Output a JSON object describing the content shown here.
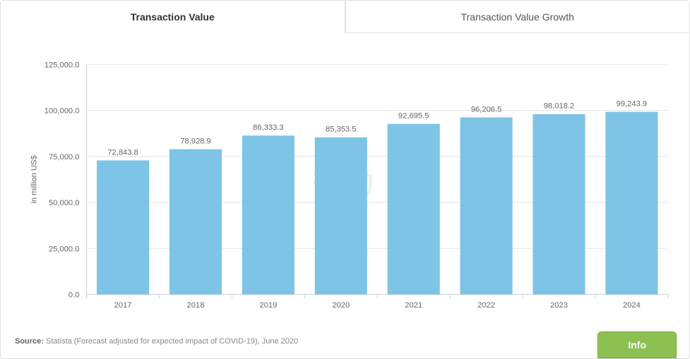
{
  "tabs": {
    "active": "Transaction Value",
    "inactive": "Transaction Value Growth"
  },
  "chart": {
    "type": "bar",
    "ylabel": "in million US$",
    "categories": [
      "2017",
      "2018",
      "2019",
      "2020",
      "2021",
      "2022",
      "2023",
      "2024"
    ],
    "values": [
      72843.8,
      78928.9,
      86333.3,
      85353.5,
      92695.5,
      96206.5,
      98018.2,
      99243.9
    ],
    "value_labels": [
      "72,843.8",
      "78,928.9",
      "86,333.3",
      "85,353.5",
      "92,695.5",
      "96,206.5",
      "98,018.2",
      "99,243.9"
    ],
    "ylim": [
      0,
      125000
    ],
    "yticks": [
      0,
      25000,
      50000,
      75000,
      100000,
      125000
    ],
    "ytick_labels": [
      "0.0",
      "25,000.0",
      "50,000.0",
      "75,000.0",
      "100,000.0",
      "125,000.0"
    ],
    "bar_color": "#7ec4e6",
    "axis_color": "#cfd4d8",
    "grid_color": "#ffffff",
    "text_color": "#666666",
    "label_fontsize": 11,
    "ylabel_fontsize": 11,
    "value_label_fontsize": 11,
    "background": "#ffffff"
  },
  "watermark": "律动",
  "source": {
    "label": "Source:",
    "text": "Statista (Forecast adjusted for expected impact of COVID-19), June 2020"
  },
  "info_button": "Info"
}
